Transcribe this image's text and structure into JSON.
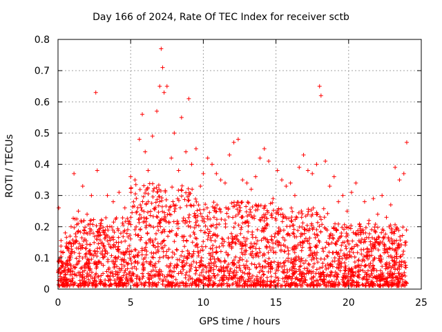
{
  "chart_data": {
    "type": "scatter",
    "title": "Day 166 of 2024, Rate Of TEC Index for receiver sctb",
    "xlabel": "GPS time / hours",
    "ylabel": "ROTI / TECUs",
    "xlim": [
      0,
      25
    ],
    "ylim": [
      0,
      0.8
    ],
    "x_ticks": [
      "0",
      "5",
      "10",
      "15",
      "20",
      "25"
    ],
    "y_ticks": [
      "0",
      "0.1",
      "0.2",
      "0.3",
      "0.4",
      "0.5",
      "0.6",
      "0.7",
      "0.8"
    ],
    "grid": true,
    "marker": "+",
    "color": "#ff0000",
    "series": [
      {
        "name": "ROTI",
        "x": [
          0.05,
          0.2,
          0.5,
          0.9,
          1.1,
          1.4,
          1.7,
          2.0,
          2.3,
          2.6,
          2.7,
          3.0,
          3.4,
          3.8,
          4.2,
          4.6,
          5.0,
          5.3,
          5.6,
          5.8,
          6.0,
          6.2,
          6.5,
          6.8,
          7.0,
          7.1,
          7.2,
          7.3,
          7.5,
          7.8,
          8.0,
          8.3,
          8.5,
          8.8,
          9.0,
          9.2,
          9.5,
          9.8,
          10.0,
          10.3,
          10.6,
          10.9,
          11.2,
          11.5,
          11.8,
          12.1,
          12.4,
          12.7,
          13.0,
          13.3,
          13.6,
          13.9,
          14.2,
          14.5,
          14.8,
          15.1,
          15.4,
          15.7,
          16.0,
          16.3,
          16.6,
          16.9,
          17.2,
          17.5,
          17.8,
          18.0,
          18.1,
          18.4,
          18.7,
          19.0,
          19.3,
          19.6,
          19.9,
          20.2,
          20.5,
          20.8,
          21.1,
          21.4,
          21.7,
          22.0,
          22.3,
          22.6,
          22.9,
          23.2,
          23.5,
          23.8,
          24.0
        ],
        "y": [
          0.26,
          0.12,
          0.18,
          0.2,
          0.37,
          0.25,
          0.33,
          0.24,
          0.3,
          0.63,
          0.38,
          0.22,
          0.3,
          0.28,
          0.31,
          0.26,
          0.36,
          0.35,
          0.48,
          0.56,
          0.44,
          0.38,
          0.49,
          0.57,
          0.65,
          0.77,
          0.71,
          0.63,
          0.65,
          0.42,
          0.5,
          0.38,
          0.55,
          0.44,
          0.61,
          0.4,
          0.45,
          0.33,
          0.37,
          0.42,
          0.4,
          0.37,
          0.35,
          0.34,
          0.43,
          0.47,
          0.48,
          0.35,
          0.34,
          0.32,
          0.36,
          0.42,
          0.45,
          0.41,
          0.29,
          0.38,
          0.35,
          0.33,
          0.34,
          0.3,
          0.39,
          0.43,
          0.38,
          0.37,
          0.4,
          0.65,
          0.62,
          0.41,
          0.33,
          0.36,
          0.28,
          0.3,
          0.25,
          0.31,
          0.34,
          0.2,
          0.28,
          0.22,
          0.29,
          0.24,
          0.3,
          0.23,
          0.27,
          0.39,
          0.35,
          0.37,
          0.47
        ]
      }
    ]
  }
}
